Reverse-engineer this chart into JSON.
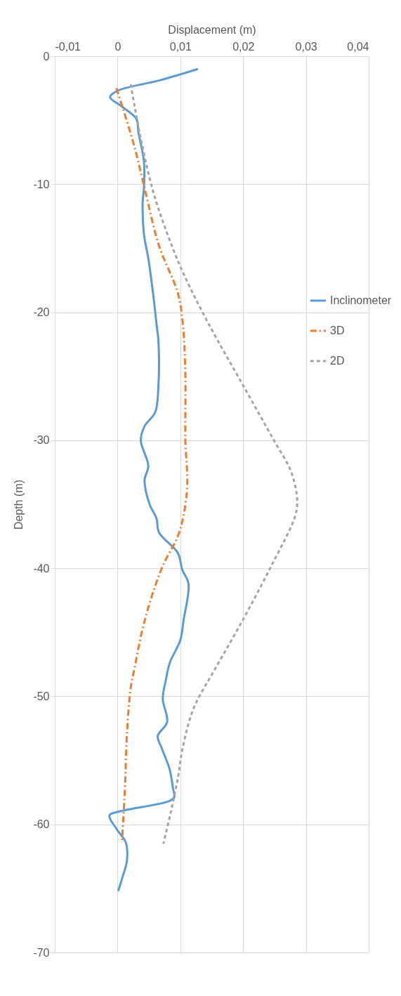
{
  "chart_data": {
    "type": "line",
    "xlabel": "Displacement (m)",
    "ylabel": "Depth (m)",
    "xlim": [
      -0.01,
      0.04
    ],
    "ylim": [
      -70,
      0
    ],
    "xticks": [
      {
        "value": -0.01,
        "label": "-0,01"
      },
      0,
      {
        "value": 0.01,
        "label": "0,01"
      },
      {
        "value": 0.02,
        "label": "0,02"
      },
      {
        "value": 0.03,
        "label": "0,03"
      },
      {
        "value": 0.04,
        "label": "0,04"
      }
    ],
    "yticks": [
      -70,
      -60,
      -50,
      -40,
      -30,
      -20,
      -10,
      0
    ],
    "grid": true,
    "legend": "right",
    "series": [
      {
        "name": "Inclinometer",
        "color": "#5b9bd5",
        "line_style": "solid",
        "x": [
          0.0128,
          0.0066,
          0.0,
          -0.0012,
          0.0006,
          0.003,
          0.0033,
          0.0042,
          0.0042,
          0.004,
          0.0042,
          0.0049,
          0.0057,
          0.0062,
          0.0065,
          0.0065,
          0.006,
          0.0043,
          0.0037,
          0.0049,
          0.0043,
          0.0051,
          0.0062,
          0.0066,
          0.0096,
          0.0103,
          0.0113,
          0.0105,
          0.01,
          0.0083,
          0.0077,
          0.0072,
          0.0079,
          0.0064,
          0.007,
          0.0083,
          0.0088,
          0.009,
          0.0081,
          0.0002,
          -0.0013,
          -0.0001,
          0.0013,
          0.0015,
          0.0008,
          0.0001
        ],
        "values": [
          -1.0,
          -1.9,
          -2.7,
          -3.2,
          -3.9,
          -4.9,
          -5.9,
          -8.2,
          -10.3,
          -11.4,
          -13.9,
          -15.8,
          -18.7,
          -20.9,
          -22.2,
          -25.8,
          -27.8,
          -28.9,
          -30.0,
          -32.0,
          -33.1,
          -35.0,
          -36.1,
          -37.2,
          -38.8,
          -40.1,
          -41.2,
          -44.1,
          -45.6,
          -47.4,
          -48.7,
          -50.2,
          -52.0,
          -53.1,
          -54.0,
          -55.7,
          -57.1,
          -57.9,
          -58.2,
          -59.0,
          -59.3,
          -60.4,
          -61.4,
          -62.8,
          -64.1,
          -65.2
        ]
      },
      {
        "name": "3D",
        "color": "#ed7d31",
        "line_style": "dashdot",
        "x": [
          -0.0002,
          0.0008,
          0.0027,
          0.0043,
          0.0066,
          0.0096,
          0.0104,
          0.0108,
          0.0108,
          0.0111,
          0.0105,
          0.0096,
          0.0073,
          0.0055,
          0.004,
          0.0027,
          0.0021,
          0.0015,
          0.0012,
          0.0009,
          0.0007
        ],
        "values": [
          -2.5,
          -4.0,
          -7.1,
          -10.3,
          -14.8,
          -18.5,
          -20.9,
          -24.9,
          -30.0,
          -33.5,
          -35.9,
          -37.5,
          -39.7,
          -42.1,
          -44.7,
          -47.8,
          -49.3,
          -52.9,
          -56.9,
          -59.7,
          -61.4
        ]
      },
      {
        "name": "2D",
        "color": "#a5a5a5",
        "line_style": "dashed",
        "x": [
          0.0021,
          0.0036,
          0.0058,
          0.0088,
          0.0107,
          0.0145,
          0.0201,
          0.0249,
          0.0276,
          0.0286,
          0.0283,
          0.0246,
          0.0201,
          0.0156,
          0.0126,
          0.0115,
          0.0103,
          0.0096,
          0.0085,
          0.0073
        ],
        "values": [
          -2.2,
          -6.2,
          -10.8,
          -15.0,
          -17.2,
          -20.9,
          -25.8,
          -30.0,
          -32.4,
          -34.6,
          -35.9,
          -39.7,
          -43.9,
          -47.8,
          -50.4,
          -51.8,
          -54.2,
          -56.4,
          -59.0,
          -61.5
        ]
      }
    ]
  }
}
